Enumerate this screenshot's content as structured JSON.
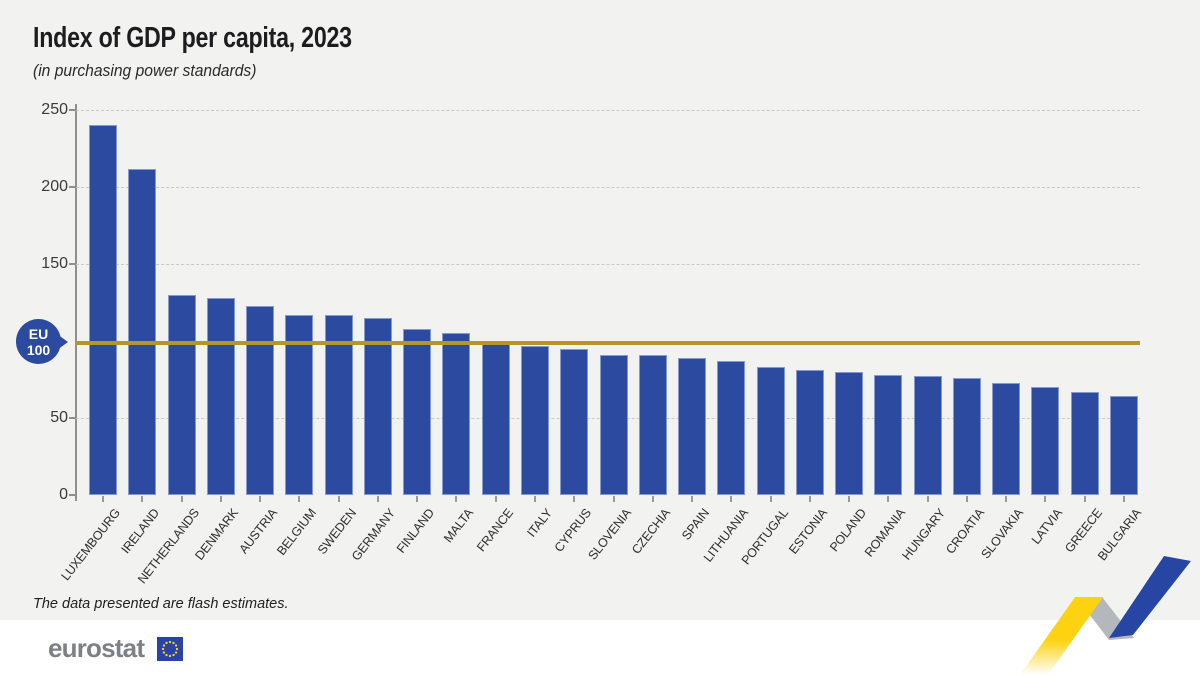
{
  "header": {
    "title": "Index of GDP per capita, 2023",
    "subtitle": "(in purchasing power standards)"
  },
  "footnote": {
    "text": "The data presented are flash estimates."
  },
  "eu_marker": {
    "label_line1": "EU",
    "label_line2": "100"
  },
  "logo": {
    "wordmark": "eurostat",
    "flag": "eu-flag"
  },
  "colors": {
    "background": "#f2f2f0",
    "footer_background": "#ffffff",
    "bar": "#2c4ba0",
    "reference_line": "#b5952c",
    "badge_blue": "#2b4aa0",
    "flag_blue": "#2a44a5",
    "star_yellow": "#ffd617",
    "zigzag_yellow": "#fdd311",
    "zigzag_gray": "#b4b7bc",
    "zigzag_blue": "#2746a4",
    "logo_gray": "#7c8187"
  },
  "chart_data": {
    "type": "bar",
    "title": "Index of GDP per capita, 2023",
    "subtitle": "(in purchasing power standards)",
    "categories": [
      "LUXEMBOURG",
      "IRELAND",
      "NETHERLANDS",
      "DENMARK",
      "AUSTRIA",
      "BELGIUM",
      "SWEDEN",
      "GERMANY",
      "FINLAND",
      "MALTA",
      "FRANCE",
      "ITALY",
      "CYPRUS",
      "SLOVENIA",
      "CZECHIA",
      "SPAIN",
      "LITHUANIA",
      "PORTUGAL",
      "ESTONIA",
      "POLAND",
      "ROMANIA",
      "HUNGARY",
      "CROATIA",
      "SLOVAKIA",
      "LATVIA",
      "GREECE",
      "BULGARIA"
    ],
    "values": [
      240,
      212,
      130,
      128,
      123,
      117,
      117,
      115,
      108,
      105,
      99,
      97,
      95,
      91,
      91,
      89,
      87,
      83,
      81,
      80,
      78,
      77,
      76,
      73,
      70,
      67,
      64
    ],
    "ylim": [
      0,
      250
    ],
    "yticks_labeled": [
      250,
      200,
      150,
      50,
      0
    ],
    "gridline_ticks": [
      250,
      200,
      150,
      50
    ],
    "grid": "horizontal-dashed",
    "legend": "none",
    "reference_line": {
      "value": 100,
      "label": "EU 100"
    },
    "bar_color": "#2c4ba0",
    "reference_line_color": "#b5952c",
    "footnote": "The data presented are flash estimates."
  }
}
